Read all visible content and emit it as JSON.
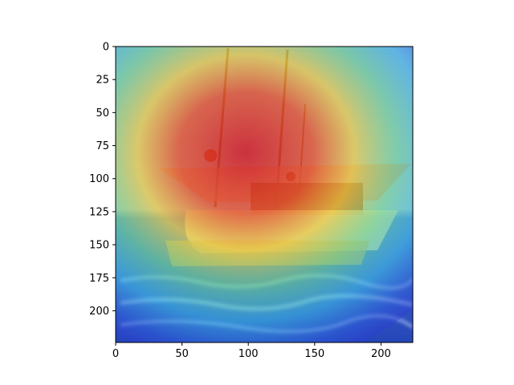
{
  "figure": {
    "kind": "image-with-heatmap-overlay",
    "overlay_colormap": "jet",
    "image_subject": "fishing boat with masts on sea water"
  },
  "axes": {
    "x_ticks": [
      0,
      50,
      100,
      150,
      200
    ],
    "y_ticks": [
      0,
      25,
      50,
      75,
      100,
      125,
      150,
      175,
      200
    ],
    "x_range": [
      0,
      224
    ],
    "y_range": [
      0,
      224
    ],
    "y_inverted": true
  },
  "heatmap": {
    "peak_center": [
      100,
      80
    ],
    "hot_color": "#d4232b",
    "cool_color": "#2a3bd6"
  },
  "colors": {
    "sky_top": "#7a8fd9",
    "sea": "#2b57c6",
    "boat_hull": "#e8d9b8",
    "cabin": "#8b2a24"
  }
}
